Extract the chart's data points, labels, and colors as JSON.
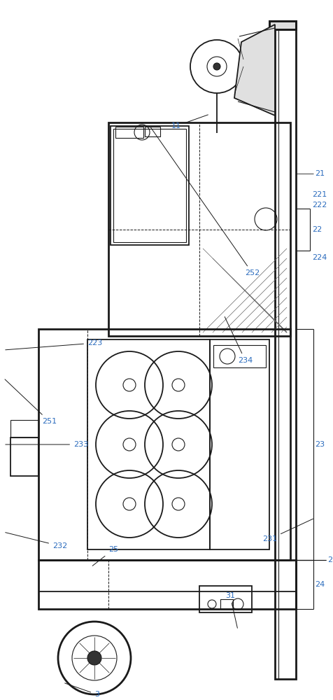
{
  "bg_color": "#ffffff",
  "line_color": "#1a1a1a",
  "label_color": "#2a6bbd",
  "figsize": [
    4.77,
    10.0
  ],
  "dpi": 100
}
